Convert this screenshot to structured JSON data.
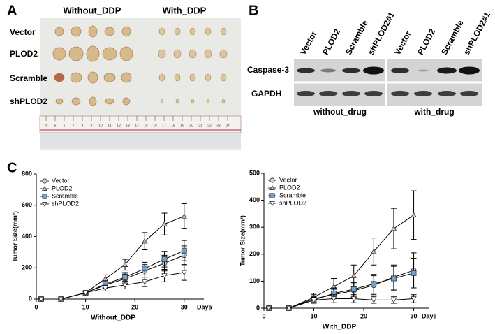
{
  "panel_a": {
    "label": "A",
    "columns": [
      "Without_DDP",
      "With_DDP"
    ],
    "rows": [
      "Vector",
      "PLOD2",
      "Scramble",
      "shPLOD2"
    ],
    "ruler_labels": [
      4,
      5,
      6,
      7,
      8,
      9,
      10,
      11,
      12,
      13,
      14,
      15,
      16,
      17,
      18,
      19,
      20,
      21,
      22,
      23,
      24
    ]
  },
  "panel_b": {
    "label": "B",
    "lanes": [
      "Vector",
      "PLOD2",
      "Scramble",
      "shPLOD2#1",
      "Vector",
      "PLOD2",
      "Scramble",
      "shPLOD2#1"
    ],
    "rows": [
      "Caspase-3",
      "GAPDH"
    ],
    "groups": [
      "without_drug",
      "with_drug"
    ]
  },
  "panel_c_label": "C",
  "chart_data": [
    {
      "type": "line",
      "x_label": "Without_DDP",
      "x_end_label": "Days",
      "y_label": "Tumor Size(mm³)",
      "x": [
        1,
        5,
        10,
        14,
        18,
        22,
        26,
        30
      ],
      "xlim": [
        0,
        34
      ],
      "xticks": [
        0,
        10,
        20,
        30
      ],
      "ylim": [
        0,
        800
      ],
      "yticks": [
        0,
        200,
        400,
        600,
        800
      ],
      "legend": "upper left",
      "series": [
        {
          "name": "Vector",
          "marker": "circle",
          "color": "#c8d3dc",
          "values": [
            0,
            0,
            40,
            90,
            130,
            180,
            230,
            280
          ],
          "errors": [
            0,
            0,
            8,
            20,
            30,
            40,
            50,
            60
          ]
        },
        {
          "name": "PLOD2",
          "marker": "triangle",
          "color": "#e8b4b0",
          "values": [
            0,
            0,
            40,
            130,
            220,
            370,
            480,
            530
          ],
          "errors": [
            0,
            0,
            10,
            25,
            35,
            55,
            70,
            80
          ]
        },
        {
          "name": "Scramble",
          "marker": "square",
          "color": "#6fa3d8",
          "values": [
            0,
            0,
            40,
            95,
            140,
            195,
            255,
            310
          ],
          "errors": [
            0,
            0,
            8,
            22,
            30,
            40,
            50,
            65
          ]
        },
        {
          "name": "shPLOD2",
          "marker": "triangle-down",
          "color": "#ffffff",
          "values": [
            0,
            0,
            40,
            70,
            90,
            110,
            150,
            170
          ],
          "errors": [
            0,
            0,
            8,
            18,
            25,
            30,
            40,
            50
          ]
        }
      ]
    },
    {
      "type": "line",
      "x_label": "With_DDP",
      "x_end_label": "Days",
      "y_label": "Tumor Size(mm³)",
      "x": [
        1,
        5,
        10,
        14,
        18,
        22,
        26,
        30
      ],
      "xlim": [
        0,
        33
      ],
      "xticks": [
        0,
        10,
        20,
        30
      ],
      "ylim": [
        0,
        500
      ],
      "yticks": [
        0,
        100,
        200,
        300,
        400,
        500
      ],
      "legend": "upper left",
      "series": [
        {
          "name": "Vector",
          "marker": "circle",
          "color": "#c8d3dc",
          "values": [
            0,
            0,
            35,
            50,
            65,
            85,
            115,
            140
          ],
          "errors": [
            0,
            0,
            15,
            20,
            25,
            35,
            45,
            65
          ]
        },
        {
          "name": "PLOD2",
          "marker": "triangle",
          "color": "#e8b4b0",
          "values": [
            0,
            0,
            40,
            80,
            120,
            210,
            295,
            345
          ],
          "errors": [
            0,
            0,
            15,
            30,
            40,
            50,
            75,
            90
          ]
        },
        {
          "name": "Scramble",
          "marker": "square",
          "color": "#6fa3d8",
          "values": [
            0,
            0,
            30,
            55,
            70,
            90,
            110,
            130
          ],
          "errors": [
            0,
            0,
            12,
            20,
            25,
            35,
            45,
            55
          ]
        },
        {
          "name": "shPLOD2",
          "marker": "triangle-down",
          "color": "#ffffff",
          "values": [
            0,
            0,
            30,
            35,
            35,
            30,
            30,
            35
          ],
          "errors": [
            0,
            0,
            10,
            15,
            15,
            12,
            12,
            15
          ]
        }
      ]
    }
  ]
}
